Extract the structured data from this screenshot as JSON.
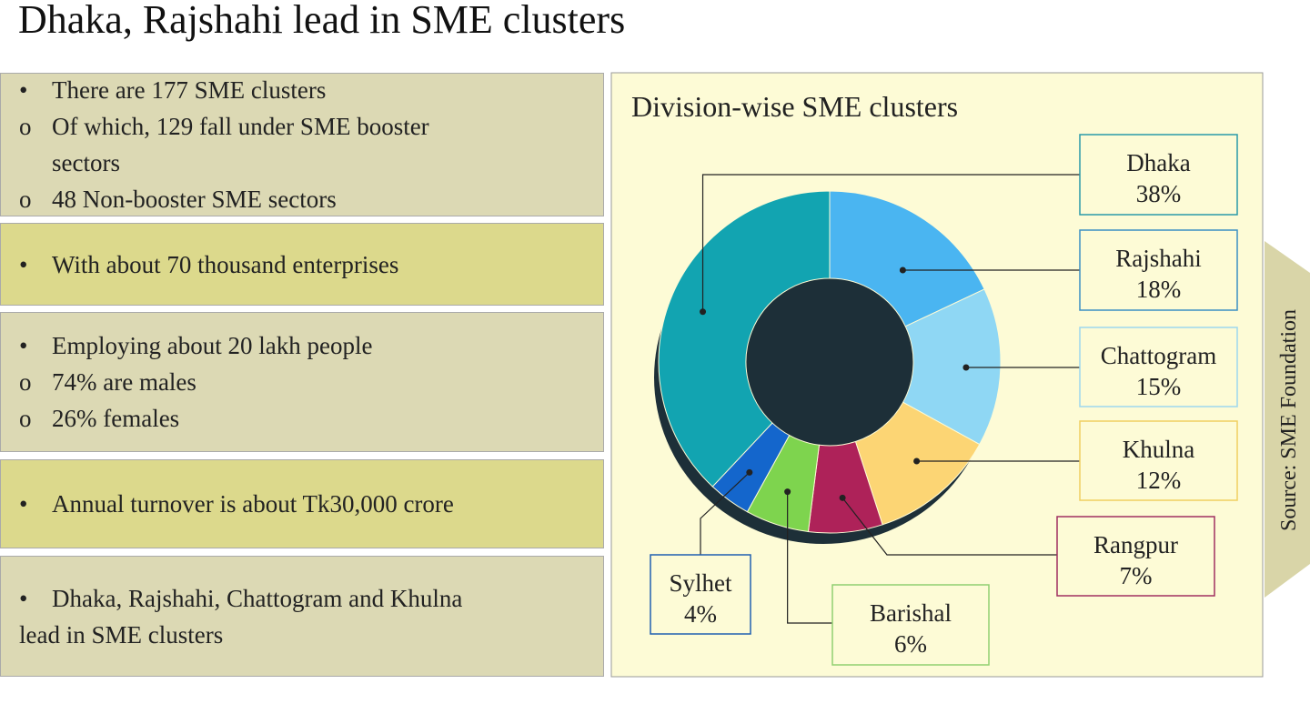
{
  "title": "Dhaka, Rajshahi lead in SME clusters",
  "panels": [
    {
      "items": [
        {
          "marker": "•",
          "text": "There are 177 SME clusters"
        },
        {
          "marker": "o",
          "text": "Of which, 129 fall under SME booster sectors"
        },
        {
          "marker": "o",
          "text": "48 Non-booster SME sectors"
        }
      ]
    },
    {
      "items": [
        {
          "marker": "•",
          "text": "With about 70 thousand enterprises"
        }
      ]
    },
    {
      "items": [
        {
          "marker": "•",
          "text": "Employing about 20 lakh people"
        },
        {
          "marker": "o",
          "text": "74% are males"
        },
        {
          "marker": "o",
          "text": "26% females"
        }
      ]
    },
    {
      "items": [
        {
          "marker": "•",
          "text": "Annual turnover is about Tk30,000 crore"
        }
      ]
    },
    {
      "items": [
        {
          "marker": "•",
          "text": "Dhaka, Rajshahi, Chattogram and Khulna lead in SME clusters"
        }
      ]
    }
  ],
  "source": "Source: SME Foundation",
  "chart_data": {
    "type": "pie",
    "title": "Division-wise SME clusters",
    "categories": [
      "Dhaka",
      "Rajshahi",
      "Chattogram",
      "Khulna",
      "Rangpur",
      "Barishal",
      "Sylhet"
    ],
    "values": [
      38,
      18,
      15,
      12,
      7,
      6,
      4
    ],
    "value_labels": [
      "38%",
      "18%",
      "15%",
      "12%",
      "7%",
      "6%",
      "4%"
    ],
    "colors": [
      "#12a4b1",
      "#4ab5f1",
      "#8fd7f4",
      "#fcd574",
      "#ae2259",
      "#7ed44e",
      "#1466cc"
    ],
    "donut": true
  }
}
